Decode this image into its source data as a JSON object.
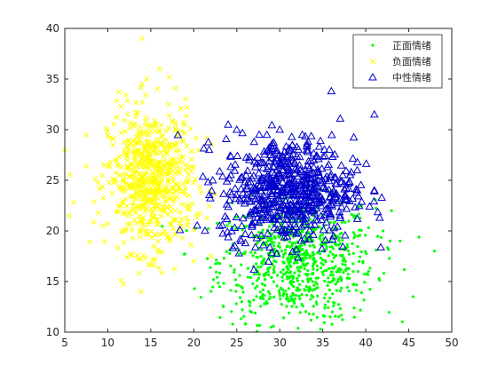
{
  "chart_data": {
    "type": "scatter",
    "title": "",
    "xlabel": "",
    "ylabel": "",
    "xlim": [
      5,
      50
    ],
    "ylim": [
      10,
      40
    ],
    "xticks": [
      5,
      10,
      15,
      20,
      25,
      30,
      35,
      40,
      45,
      50
    ],
    "yticks": [
      10,
      15,
      20,
      25,
      30,
      35,
      40
    ],
    "grid": false,
    "legend_position": "top-right",
    "series": [
      {
        "name": "正面情绪",
        "marker": "point",
        "color": "#00ff00",
        "center": [
          32,
          17
        ],
        "spread": [
          4.5,
          3
        ],
        "count": 800,
        "points": [
          [
            48,
            18
          ],
          [
            45.5,
            13.5
          ],
          [
            23,
            14.5
          ],
          [
            43,
            22
          ],
          [
            26,
            10.8
          ],
          [
            29,
            10.5
          ],
          [
            39.5,
            22.5
          ],
          [
            44,
            19
          ]
        ]
      },
      {
        "name": "负面情绪",
        "marker": "x",
        "color": "#ffff00",
        "center": [
          15,
          25
        ],
        "spread": [
          2.5,
          3.5
        ],
        "count": 650,
        "points": [
          [
            14,
            39
          ],
          [
            5,
            28
          ],
          [
            5.5,
            21.5
          ],
          [
            6,
            22.8
          ],
          [
            22,
            28.5
          ],
          [
            16,
            36
          ],
          [
            14.5,
            35
          ],
          [
            20,
            17
          ],
          [
            22,
            17.5
          ]
        ]
      },
      {
        "name": "中性情绪",
        "marker": "triangle",
        "color": "#0000cc",
        "center": [
          31,
          24
        ],
        "spread": [
          3.8,
          2.6
        ],
        "count": 650,
        "points": [
          [
            36,
            33.8
          ],
          [
            41,
            31.5
          ],
          [
            24,
            30.5
          ],
          [
            25,
            30
          ],
          [
            28.5,
            29.5
          ],
          [
            30,
            30
          ],
          [
            39,
            26
          ],
          [
            41,
            24
          ],
          [
            23,
            20.5
          ],
          [
            25.5,
            19
          ],
          [
            26,
            18.8
          ],
          [
            37,
            21.5
          ]
        ]
      }
    ]
  }
}
